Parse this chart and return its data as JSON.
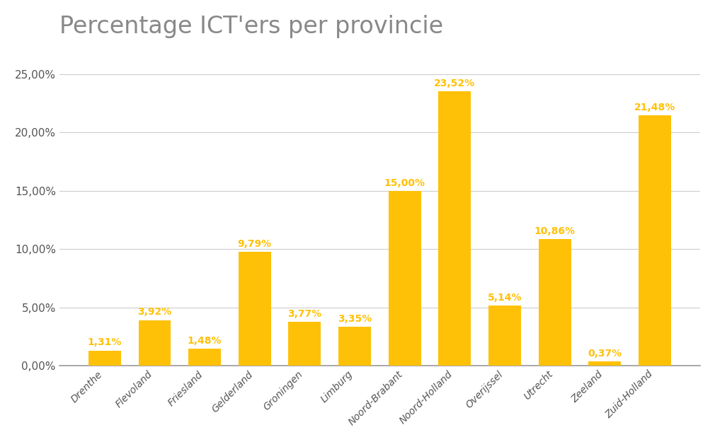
{
  "title": "Percentage ICT'ers per provincie",
  "categories": [
    "Drenthe",
    "Flevoland",
    "Friesland",
    "Gelderland",
    "Groningen",
    "Limburg",
    "Noord-Brabant",
    "Noord-Holland",
    "Overijssel",
    "Utrecht",
    "Zeeland",
    "Zuid-Holland"
  ],
  "values": [
    1.31,
    3.92,
    1.48,
    9.79,
    3.77,
    3.35,
    15.0,
    23.52,
    5.14,
    10.86,
    0.37,
    21.48
  ],
  "labels": [
    "1,31%",
    "3,92%",
    "1,48%",
    "9,79%",
    "3,77%",
    "3,35%",
    "15,00%",
    "23,52%",
    "5,14%",
    "10,86%",
    "0,37%",
    "21,48%"
  ],
  "bar_color": "#FFC107",
  "label_color": "#FFC107",
  "background_color": "#FFFFFF",
  "title_color": "#888888",
  "title_fontsize": 24,
  "label_fontsize": 10,
  "ytick_labels": [
    "0,00%",
    "5,00%",
    "10,00%",
    "15,00%",
    "20,00%",
    "25,00%"
  ],
  "ytick_values": [
    0,
    5,
    10,
    15,
    20,
    25
  ],
  "ylim": [
    0,
    27.0
  ],
  "grid_color": "#CCCCCC",
  "bottom_spine_color": "#999999",
  "tick_color": "#555555",
  "xtick_fontsize": 10,
  "ytick_fontsize": 11
}
